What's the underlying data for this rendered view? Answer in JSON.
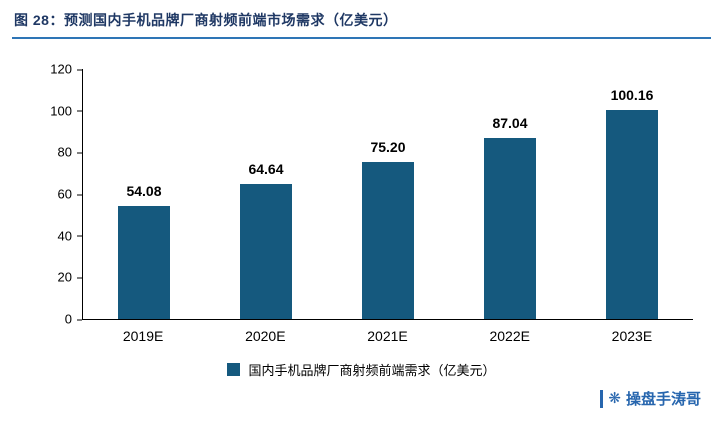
{
  "header": {
    "prefix": "图 28：",
    "title": "预测国内手机品牌厂商射频前端市场需求（亿美元）"
  },
  "chart_data": {
    "type": "bar",
    "title": "预测国内手机品牌厂商射频前端市场需求（亿美元）",
    "categories": [
      "2019E",
      "2020E",
      "2021E",
      "2022E",
      "2023E"
    ],
    "values": [
      54.08,
      64.64,
      75.2,
      87.04,
      100.16
    ],
    "value_labels": [
      "54.08",
      "64.64",
      "75.20",
      "87.04",
      "100.16"
    ],
    "xlabel": "",
    "ylabel": "",
    "ylim": [
      0,
      120
    ],
    "yticks": [
      0,
      20,
      40,
      60,
      80,
      100,
      120
    ],
    "grid": false,
    "bar_color": "#15597E",
    "legend": {
      "position": "bottom",
      "label": "国内手机品牌厂商射频前端需求（亿美元）"
    }
  },
  "colors": {
    "title_text": "#1F3864",
    "title_rule": "#2E75B6",
    "bar": "#15597E",
    "watermark": "#2766AE"
  },
  "watermark": {
    "icon": "snowflake-icon",
    "icon_char": "❋",
    "text": "操盘手涛哥"
  }
}
